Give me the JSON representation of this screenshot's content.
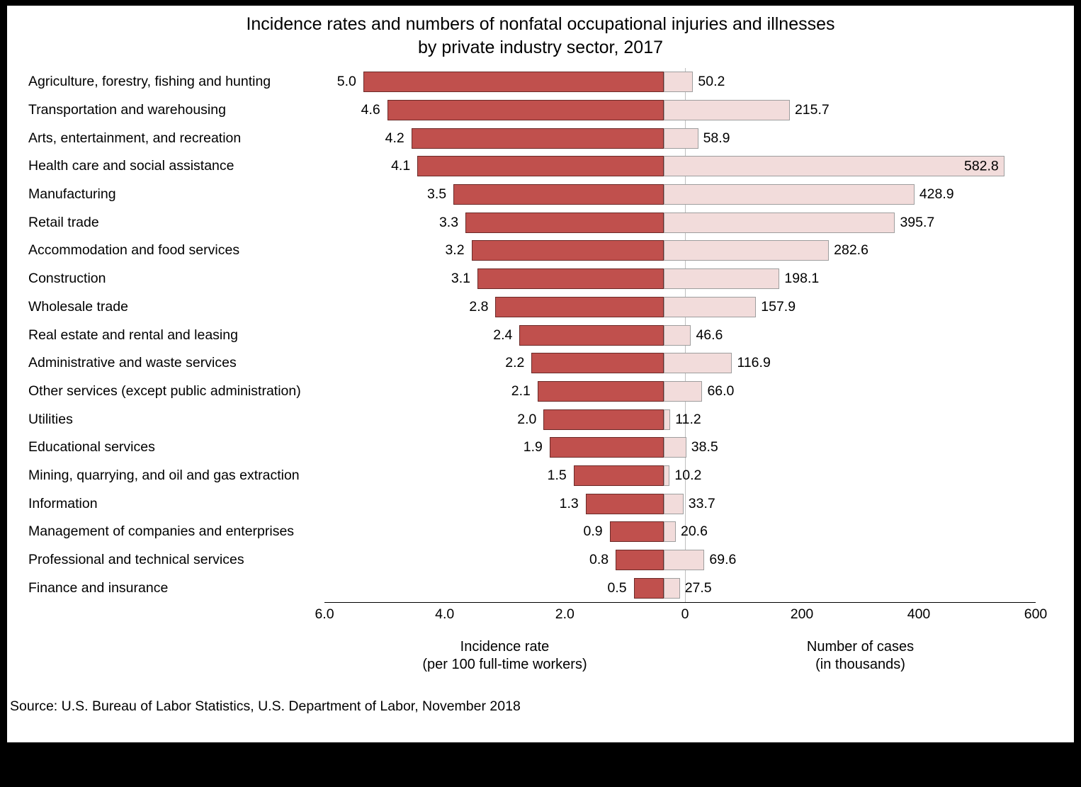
{
  "title": "Incidence rates and numbers of nonfatal occupational injuries and illnesses\nby private industry sector, 2017",
  "source": "Source: U.S. Bureau of Labor Statistics, U.S. Department of Labor, November 2018",
  "chart_data": {
    "type": "bar",
    "orientation": "horizontal-diverging",
    "title": "Incidence rates and numbers of nonfatal occupational injuries and illnesses by private industry sector, 2017",
    "categories": [
      "Agriculture, forestry, fishing and hunting",
      "Transportation and warehousing",
      "Arts, entertainment, and recreation",
      "Health care and social assistance",
      "Manufacturing",
      "Retail trade",
      "Accommodation and food services",
      "Construction",
      "Wholesale trade",
      "Real estate and rental and leasing",
      "Administrative and waste services",
      "Other services (except public administration)",
      "Utilities",
      "Educational services",
      "Mining, quarrying, and oil and gas extraction",
      "Information",
      "Management of companies and enterprises",
      "Professional and technical services",
      "Finance and insurance"
    ],
    "series": [
      {
        "name": "Incidence rate (per 100 full-time workers)",
        "values": [
          5.0,
          4.6,
          4.2,
          4.1,
          3.5,
          3.3,
          3.2,
          3.1,
          2.8,
          2.4,
          2.2,
          2.1,
          2.0,
          1.9,
          1.5,
          1.3,
          0.9,
          0.8,
          0.5
        ]
      },
      {
        "name": "Number of cases (in thousands)",
        "values": [
          50.2,
          215.7,
          58.9,
          582.8,
          428.9,
          395.7,
          282.6,
          198.1,
          157.9,
          46.6,
          116.9,
          66.0,
          11.2,
          38.5,
          10.2,
          33.7,
          20.6,
          69.6,
          27.5
        ]
      }
    ],
    "left_axis": {
      "title": "Incidence rate\n(per 100 full-time workers)",
      "max": 6.0,
      "ticks": [
        {
          "v": 6,
          "label": "6.0"
        },
        {
          "v": 4,
          "label": "4.0"
        },
        {
          "v": 2,
          "label": "2.0"
        }
      ]
    },
    "center_tick": "0",
    "right_axis": {
      "title": "Number of cases\n(in thousands)",
      "max": 600,
      "ticks": [
        {
          "v": 200,
          "label": "200"
        },
        {
          "v": 400,
          "label": "400"
        },
        {
          "v": 600,
          "label": "600"
        }
      ]
    },
    "colors": {
      "rate_bar_fill": "#c0504d",
      "rate_bar_border": "#6b2a28",
      "cases_bar_fill": "#f2dcdb",
      "cases_bar_border": "#9e9e9e",
      "zero_line": "#bfbfbf",
      "axis_line": "#000000",
      "frame": "#000000",
      "background": "#ffffff"
    },
    "grid": false,
    "legend": "none"
  }
}
